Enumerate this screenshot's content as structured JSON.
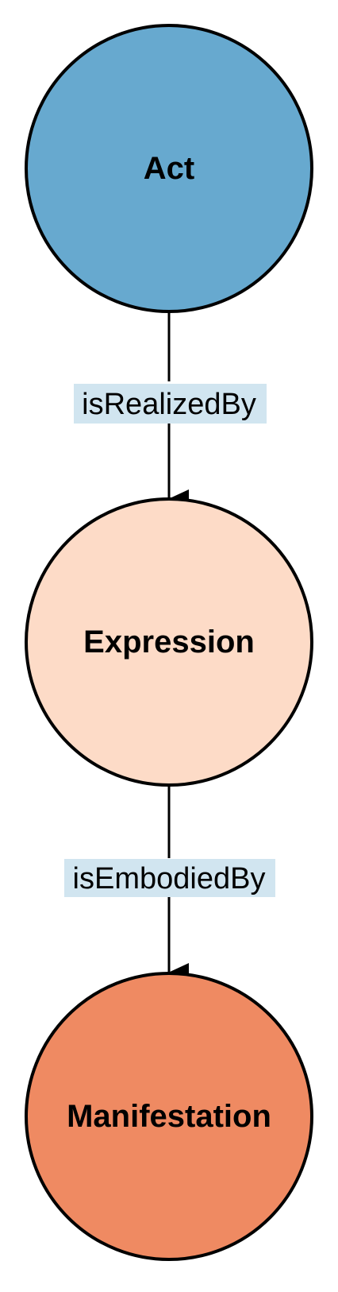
{
  "nodes": [
    {
      "id": "act",
      "label": "Act",
      "color": "#67a9cf"
    },
    {
      "id": "expression",
      "label": "Expression",
      "color": "#fddbc7"
    },
    {
      "id": "manifestation",
      "label": "Manifestation",
      "color": "#ef8a62"
    }
  ],
  "edges": [
    {
      "from": "act",
      "to": "expression",
      "label": "isRealizedBy"
    },
    {
      "from": "expression",
      "to": "manifestation",
      "label": "isEmbodiedBy"
    }
  ],
  "colors": {
    "edge_label_background": "#d1e5f0",
    "stroke": "#000000"
  }
}
